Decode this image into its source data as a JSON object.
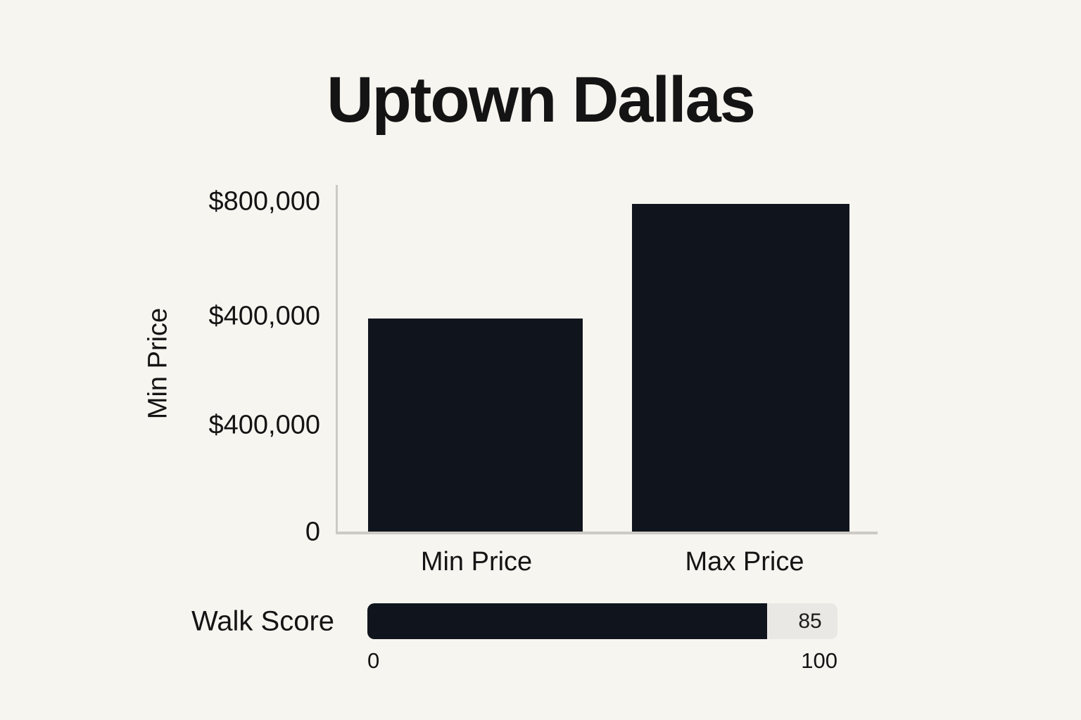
{
  "title": "Uptown Dallas",
  "chart_data": {
    "type": "bar",
    "title": "Uptown Dallas",
    "categories": [
      "Min Price",
      "Max Price"
    ],
    "values": [
      400000,
      800000
    ],
    "xlabel": "",
    "ylabel": "Min Price",
    "ylim": [
      0,
      800000
    ],
    "ytick_labels": [
      "$800,000",
      "$400,000",
      "$400,000",
      "0"
    ],
    "grid": "off",
    "legend": "none",
    "bar_color": "#10151d"
  },
  "walk_score": {
    "label": "Walk Score",
    "value": 85,
    "value_label": "85",
    "min_label": "0",
    "max_label": "100"
  },
  "colors": {
    "background": "#f7f5f0",
    "bar": "#10151d",
    "axis": "#cdcac5",
    "badge_bg": "#eae8e4",
    "text": "#141414"
  }
}
